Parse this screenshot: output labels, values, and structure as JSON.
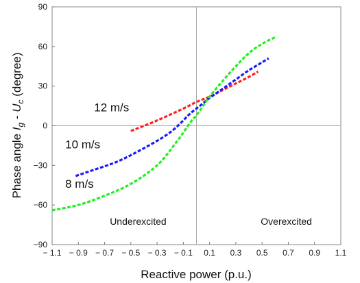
{
  "chart_data": {
    "type": "line",
    "title": "",
    "xlabel": "Reactive power (p.u.)",
    "ylabel_parts": [
      "Phase angle ",
      "I",
      "g",
      " - ",
      "U",
      "c",
      " (degree)"
    ],
    "xlim": [
      -1.1,
      1.1
    ],
    "ylim": [
      -90,
      90
    ],
    "x_ticks": [
      -1.1,
      -0.9,
      -0.7,
      -0.5,
      -0.3,
      -0.1,
      0.1,
      0.3,
      0.5,
      0.7,
      0.9,
      1.1
    ],
    "x_tick_labels": [
      "− 1.1",
      "− 0.9",
      "− 0.7",
      "− 0.5",
      "− 0.3",
      "− 0.1",
      "0.1",
      "0.3",
      "0.5",
      "0.7",
      "0.9",
      "1.1"
    ],
    "y_ticks": [
      -90,
      -60,
      -30,
      0,
      30,
      60,
      90
    ],
    "y_tick_labels": [
      "−90",
      "−60",
      "−30",
      "0",
      "30",
      "60",
      "90"
    ],
    "grid": false,
    "reference_lines": {
      "x": 0,
      "y": 0
    },
    "series": [
      {
        "name": "12 m/s",
        "color": "#ff2020",
        "points": [
          [
            -0.5,
            -4
          ],
          [
            -0.3,
            4
          ],
          [
            -0.1,
            13
          ],
          [
            0.0,
            18
          ],
          [
            0.1,
            22
          ],
          [
            0.2,
            27
          ],
          [
            0.3,
            32
          ],
          [
            0.4,
            37
          ],
          [
            0.47,
            41
          ]
        ]
      },
      {
        "name": "10 m/s",
        "color": "#1a1aff",
        "points": [
          [
            -0.92,
            -38
          ],
          [
            -0.8,
            -34
          ],
          [
            -0.6,
            -27
          ],
          [
            -0.4,
            -17
          ],
          [
            -0.2,
            -5
          ],
          [
            -0.05,
            9
          ],
          [
            0.0,
            13
          ],
          [
            0.05,
            17
          ],
          [
            0.1,
            21
          ],
          [
            0.2,
            28
          ],
          [
            0.3,
            35
          ],
          [
            0.4,
            42
          ],
          [
            0.5,
            48
          ],
          [
            0.55,
            51
          ]
        ]
      },
      {
        "name": "8 m/s",
        "color": "#22ee22",
        "points": [
          [
            -1.1,
            -64
          ],
          [
            -0.9,
            -60
          ],
          [
            -0.7,
            -53
          ],
          [
            -0.5,
            -44
          ],
          [
            -0.3,
            -30
          ],
          [
            -0.15,
            -12
          ],
          [
            -0.05,
            2
          ],
          [
            0.0,
            8
          ],
          [
            0.05,
            15
          ],
          [
            0.1,
            22
          ],
          [
            0.2,
            34
          ],
          [
            0.3,
            45
          ],
          [
            0.4,
            55
          ],
          [
            0.5,
            62
          ],
          [
            0.6,
            67
          ]
        ]
      }
    ],
    "annotations": [
      {
        "text": "12 m/s",
        "x": -0.78,
        "y": 11
      },
      {
        "text": "10 m/s",
        "x": -1.0,
        "y": -17
      },
      {
        "text": "8 m/s",
        "x": -1.0,
        "y": -47
      },
      {
        "text": "Underexcited",
        "x": -0.66,
        "y": -75
      },
      {
        "text": "Overexcited",
        "x": 0.49,
        "y": -75
      }
    ]
  }
}
